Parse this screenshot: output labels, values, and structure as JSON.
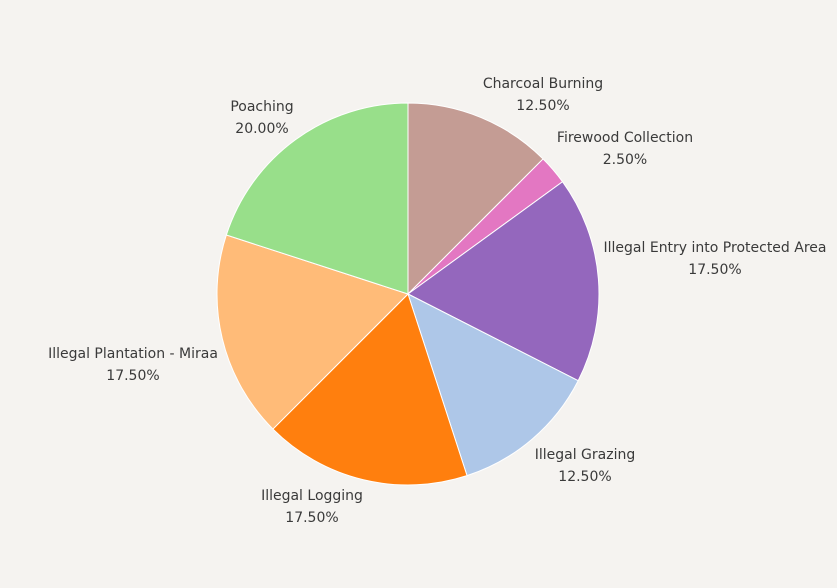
{
  "chart_data": {
    "type": "pie",
    "title": "",
    "legend": "none",
    "slices": [
      {
        "label": "Charcoal Burning",
        "value": 12.5,
        "value_label": "12.50%",
        "color": "#c49c94"
      },
      {
        "label": "Firewood Collection",
        "value": 2.5,
        "value_label": "2.50%",
        "color": "#e377c2"
      },
      {
        "label": "Illegal Entry into Protected Area",
        "value": 17.5,
        "value_label": "17.50%",
        "color": "#9467bd"
      },
      {
        "label": "Illegal Grazing",
        "value": 12.5,
        "value_label": "12.50%",
        "color": "#aec7e8"
      },
      {
        "label": "Illegal Logging",
        "value": 17.5,
        "value_label": "17.50%",
        "color": "#ff7f0e"
      },
      {
        "label": "Illegal Plantation - Miraa",
        "value": 17.5,
        "value_label": "17.50%",
        "color": "#ffbb78"
      },
      {
        "label": "Poaching",
        "value": 20.0,
        "value_label": "20.00%",
        "color": "#98df8a"
      }
    ]
  }
}
